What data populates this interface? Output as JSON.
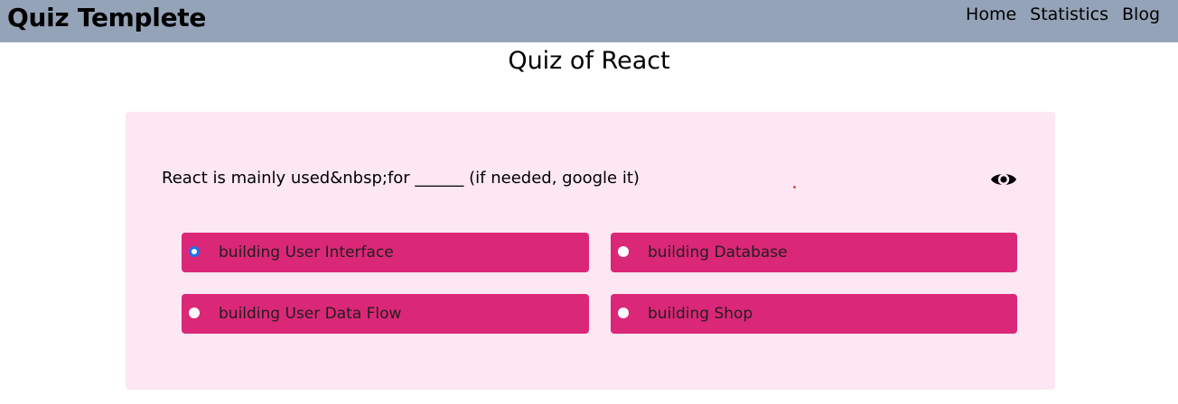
{
  "navbar": {
    "brand": "Quiz Templete",
    "links": [
      "Home",
      "Statistics",
      "Blog"
    ]
  },
  "page": {
    "title": "Quiz of React"
  },
  "quiz": {
    "question": "React is mainly used&nbsp;for ______ (if needed, google it)",
    "options": [
      {
        "label": "building User Interface",
        "selected": true
      },
      {
        "label": "building Database",
        "selected": false
      },
      {
        "label": "building User Data Flow",
        "selected": false
      },
      {
        "label": "building Shop",
        "selected": false
      }
    ],
    "reveal_icon": "eye-icon"
  },
  "colors": {
    "navbar_bg": "#94a3b8",
    "card_bg": "#fce7f3",
    "option_bg": "#db2777",
    "radio_selected": "#1a73e8"
  }
}
